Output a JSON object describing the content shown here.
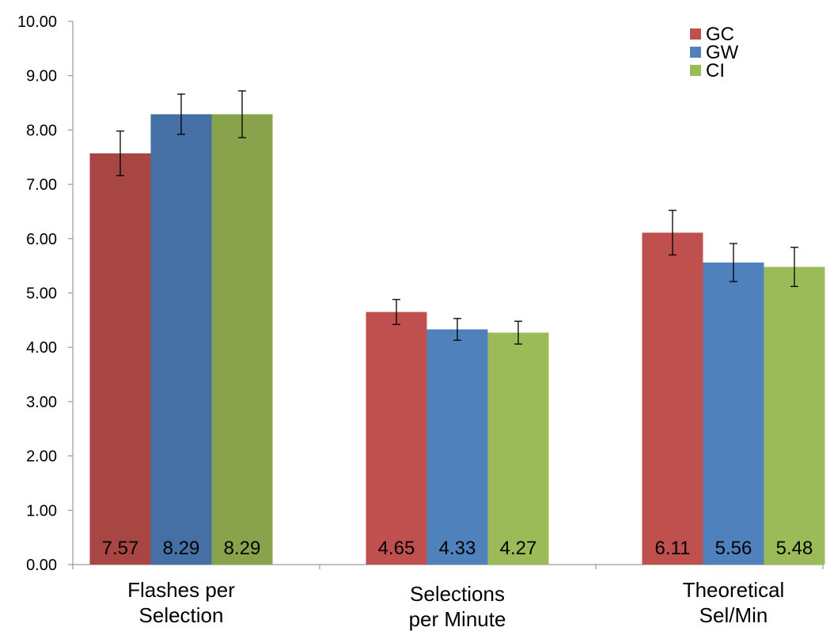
{
  "chart_data": {
    "type": "bar",
    "categories": [
      "Flashes per Selection",
      "Selections per Minute",
      "Theoretical Sel/Min"
    ],
    "category_lines": [
      [
        "Flashes per",
        "Selection"
      ],
      [
        "Selections",
        "per Minute"
      ],
      [
        "Theoretical",
        "Sel/Min"
      ]
    ],
    "series": [
      {
        "name": "GC",
        "color": "#c0504d",
        "dark_color": "#a84644",
        "values": [
          7.57,
          4.65,
          6.11
        ],
        "err": [
          0.41,
          0.23,
          0.41
        ],
        "labels": [
          "7.57",
          "4.65",
          "6.11"
        ]
      },
      {
        "name": "GW",
        "color": "#4f81bd",
        "dark_color": "#4470a6",
        "values": [
          8.29,
          4.33,
          5.56
        ],
        "err": [
          0.37,
          0.2,
          0.35
        ],
        "labels": [
          "8.29",
          "4.33",
          "5.56"
        ]
      },
      {
        "name": "CI",
        "color": "#9bbb59",
        "dark_color": "#88a34b",
        "values": [
          8.29,
          4.27,
          5.48
        ],
        "err": [
          0.43,
          0.21,
          0.36
        ],
        "labels": [
          "8.29",
          "4.27",
          "5.48"
        ]
      }
    ],
    "ylim": [
      0,
      10
    ],
    "yticks": [
      "0.00",
      "1.00",
      "2.00",
      "3.00",
      "4.00",
      "5.00",
      "6.00",
      "7.00",
      "8.00",
      "9.00",
      "10.00"
    ],
    "legend_position": "top-right",
    "grid": false,
    "highlighted_category": "Flashes per Selection",
    "title": "",
    "xlabel": "",
    "ylabel": ""
  }
}
